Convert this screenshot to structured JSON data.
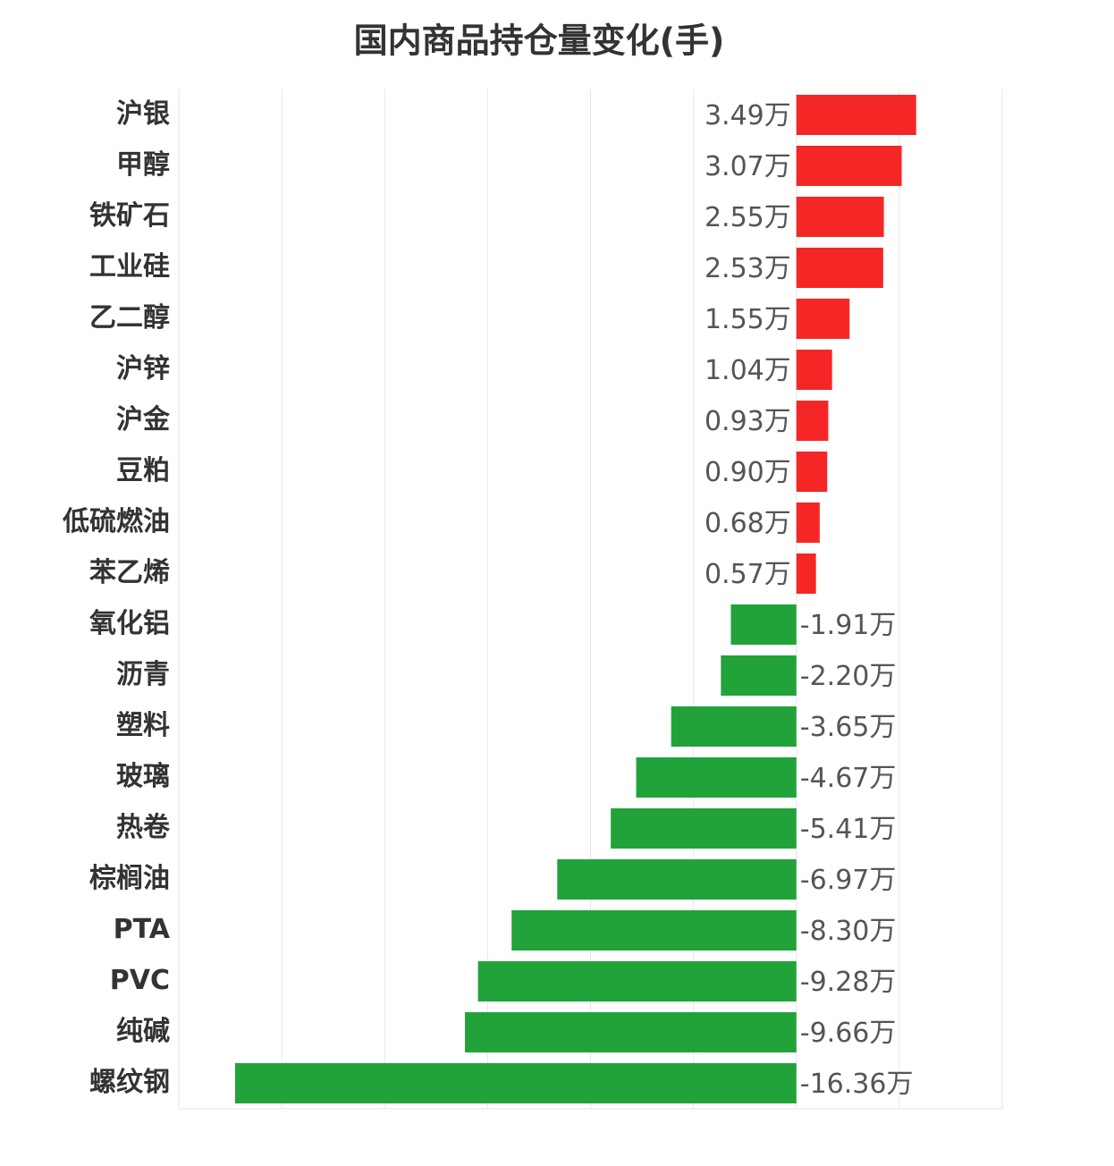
{
  "chart_data": {
    "type": "hbar",
    "title": "国内商品持仓量变化(手)",
    "categories": [
      "沪银",
      "甲醇",
      "铁矿石",
      "工业硅",
      "乙二醇",
      "沪锌",
      "沪金",
      "豆粕",
      "低硫燃油",
      "苯乙烯",
      "氧化铝",
      "沥青",
      "塑料",
      "玻璃",
      "热卷",
      "棕榈油",
      "PTA",
      "PVC",
      "纯碱",
      "螺纹钢"
    ],
    "values": [
      3.49,
      3.07,
      2.55,
      2.53,
      1.55,
      1.04,
      0.93,
      0.9,
      0.68,
      0.57,
      -1.91,
      -2.2,
      -3.65,
      -4.67,
      -5.41,
      -6.97,
      -8.3,
      -9.28,
      -9.66,
      -16.36
    ],
    "value_labels": [
      "3.49万",
      "3.07万",
      "2.55万",
      "2.53万",
      "1.55万",
      "1.04万",
      "0.93万",
      "0.90万",
      "0.68万",
      "0.57万",
      "-1.91万",
      "-2.20万",
      "-3.65万",
      "-4.67万",
      "-5.41万",
      "-6.97万",
      "-8.30万",
      "-9.28万",
      "-9.66万",
      "-16.36万"
    ],
    "positive_color": "#f52626",
    "negative_color": "#21a33a",
    "xlim": [
      -18,
      6
    ],
    "xticks": [
      -18,
      -15,
      -12,
      -9,
      -6,
      -3,
      0,
      3,
      6
    ],
    "grid": true
  }
}
